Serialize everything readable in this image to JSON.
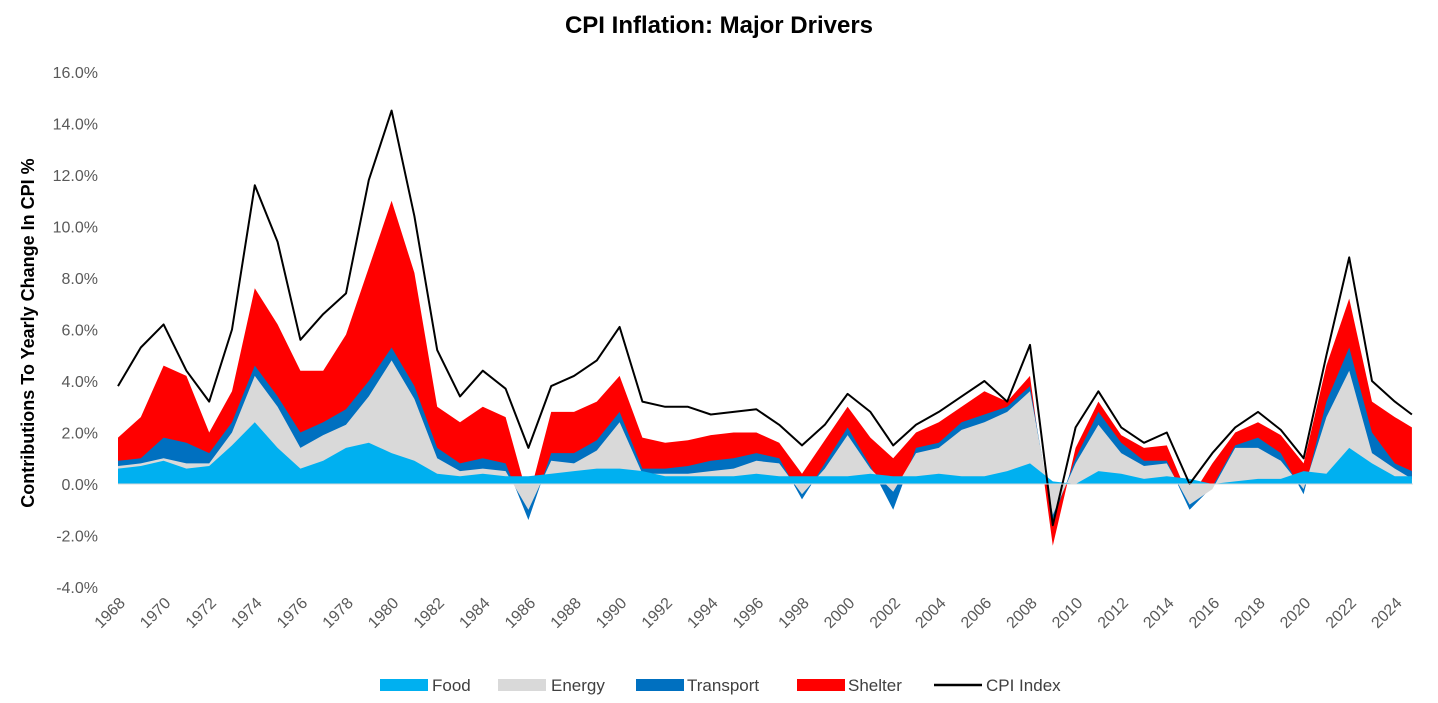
{
  "chart_data": {
    "type": "area",
    "title": "CPI Inflation: Major Drivers",
    "xlabel": "",
    "ylabel": "Contributions To Yearly Change In CPI %",
    "xlim": [
      1968,
      2024.8
    ],
    "ylim": [
      -4,
      16
    ],
    "y_tick_labels": [
      "16.0%",
      "14.0%",
      "12.0%",
      "10.0%",
      "8.0%",
      "6.0%",
      "4.0%",
      "2.0%",
      "0.0%",
      "-2.0%",
      "-4.0%"
    ],
    "y_ticks": [
      16,
      14,
      12,
      10,
      8,
      6,
      4,
      2,
      0,
      -2,
      -4
    ],
    "x_tick_labels": [
      "1968",
      "1970",
      "1972",
      "1974",
      "1976",
      "1978",
      "1980",
      "1982",
      "1984",
      "1986",
      "1988",
      "1990",
      "1992",
      "1994",
      "1996",
      "1998",
      "2000",
      "2002",
      "2004",
      "2006",
      "2008",
      "2010",
      "2012",
      "2014",
      "2016",
      "2018",
      "2020",
      "2022",
      "2024"
    ],
    "x_ticks": [
      1968,
      1970,
      1972,
      1974,
      1976,
      1978,
      1980,
      1982,
      1984,
      1986,
      1988,
      1990,
      1992,
      1994,
      1996,
      1998,
      2000,
      2002,
      2004,
      2006,
      2008,
      2010,
      2012,
      2014,
      2016,
      2018,
      2020,
      2022,
      2024
    ],
    "grid": false,
    "legend_position": "bottom",
    "x": [
      1968,
      1969,
      1970,
      1971,
      1972,
      1973,
      1974,
      1975,
      1976,
      1977,
      1978,
      1979,
      1980,
      1981,
      1982,
      1983,
      1984,
      1985,
      1986,
      1987,
      1988,
      1989,
      1990,
      1991,
      1992,
      1993,
      1994,
      1995,
      1996,
      1997,
      1998,
      1999,
      2000,
      2001,
      2002,
      2003,
      2004,
      2005,
      2006,
      2007,
      2008,
      2009,
      2010,
      2011,
      2012,
      2013,
      2014,
      2015,
      2016,
      2017,
      2018,
      2019,
      2020,
      2021,
      2022,
      2023,
      2024,
      2024.75
    ],
    "series": [
      {
        "name": "Food",
        "kind": "area",
        "color": "#00b0f0",
        "values": [
          0.6,
          0.7,
          0.9,
          0.6,
          0.7,
          1.5,
          2.4,
          1.4,
          0.6,
          0.9,
          1.4,
          1.6,
          1.2,
          0.9,
          0.4,
          0.3,
          0.4,
          0.3,
          0.3,
          0.4,
          0.5,
          0.6,
          0.6,
          0.5,
          0.3,
          0.3,
          0.3,
          0.3,
          0.4,
          0.3,
          0.3,
          0.3,
          0.3,
          0.4,
          0.3,
          0.3,
          0.4,
          0.3,
          0.3,
          0.5,
          0.8,
          0.1,
          0.0,
          0.5,
          0.4,
          0.2,
          0.3,
          0.2,
          0.0,
          0.1,
          0.2,
          0.2,
          0.5,
          0.4,
          1.4,
          0.8,
          0.3,
          0.3
        ]
      },
      {
        "name": "Energy",
        "kind": "area",
        "color": "#d9d9d9",
        "values": [
          0.7,
          0.8,
          1.0,
          0.8,
          0.8,
          2.0,
          4.2,
          3.0,
          1.4,
          1.9,
          2.3,
          3.4,
          4.8,
          3.3,
          1.0,
          0.5,
          0.6,
          0.5,
          -1.0,
          0.9,
          0.8,
          1.3,
          2.4,
          0.4,
          0.4,
          0.4,
          0.5,
          0.6,
          0.9,
          0.8,
          -0.4,
          0.6,
          1.9,
          0.6,
          -0.3,
          1.2,
          1.4,
          2.1,
          2.4,
          2.8,
          3.6,
          -1.2,
          0.8,
          2.3,
          1.2,
          0.7,
          0.8,
          -0.8,
          -0.2,
          1.4,
          1.4,
          0.9,
          -0.2,
          2.6,
          4.4,
          1.2,
          0.6,
          0.2
        ]
      },
      {
        "name": "Transport",
        "kind": "area",
        "color": "#0070c0",
        "values": [
          0.9,
          1.0,
          1.8,
          1.6,
          1.2,
          2.4,
          4.6,
          3.4,
          2.0,
          2.4,
          2.9,
          4.0,
          5.3,
          3.8,
          1.4,
          0.8,
          1.0,
          0.8,
          -1.4,
          1.2,
          1.2,
          1.7,
          2.8,
          0.6,
          0.6,
          0.7,
          0.9,
          1.0,
          1.2,
          1.0,
          -0.6,
          0.8,
          2.2,
          0.7,
          -1.0,
          1.4,
          1.6,
          2.4,
          2.7,
          3.0,
          3.8,
          -1.4,
          1.0,
          2.8,
          1.6,
          0.9,
          0.9,
          -1.0,
          -0.1,
          1.5,
          1.8,
          1.2,
          -0.4,
          3.2,
          5.3,
          2.0,
          0.8,
          0.5
        ]
      },
      {
        "name": "Shelter",
        "kind": "area",
        "color": "#ff0000",
        "values": [
          1.8,
          2.6,
          4.6,
          4.2,
          2.0,
          3.6,
          7.6,
          6.2,
          4.4,
          4.4,
          5.8,
          8.4,
          11.0,
          8.2,
          3.0,
          2.4,
          3.0,
          2.6,
          -0.6,
          2.8,
          2.8,
          3.2,
          4.2,
          1.8,
          1.6,
          1.7,
          1.9,
          2.0,
          2.0,
          1.6,
          0.4,
          1.7,
          3.0,
          1.8,
          1.0,
          2.0,
          2.4,
          3.0,
          3.6,
          3.2,
          4.2,
          -2.4,
          1.4,
          3.2,
          1.9,
          1.4,
          1.5,
          -0.6,
          0.8,
          2.0,
          2.4,
          1.9,
          0.8,
          4.6,
          7.2,
          3.2,
          2.6,
          2.2
        ]
      },
      {
        "name": "CPI Index",
        "kind": "line",
        "color": "#000000",
        "values": [
          3.8,
          5.3,
          6.2,
          4.4,
          3.2,
          6.0,
          11.6,
          9.4,
          5.6,
          6.6,
          7.4,
          11.8,
          14.5,
          10.4,
          5.2,
          3.4,
          4.4,
          3.7,
          1.4,
          3.8,
          4.2,
          4.8,
          6.1,
          3.2,
          3.0,
          3.0,
          2.7,
          2.8,
          2.9,
          2.3,
          1.5,
          2.3,
          3.5,
          2.8,
          1.5,
          2.3,
          2.8,
          3.4,
          4.0,
          3.2,
          5.4,
          -1.6,
          2.2,
          3.6,
          2.2,
          1.6,
          2.0,
          0.0,
          1.2,
          2.2,
          2.8,
          2.1,
          1.0,
          5.0,
          8.8,
          4.0,
          3.2,
          2.7
        ]
      }
    ]
  }
}
